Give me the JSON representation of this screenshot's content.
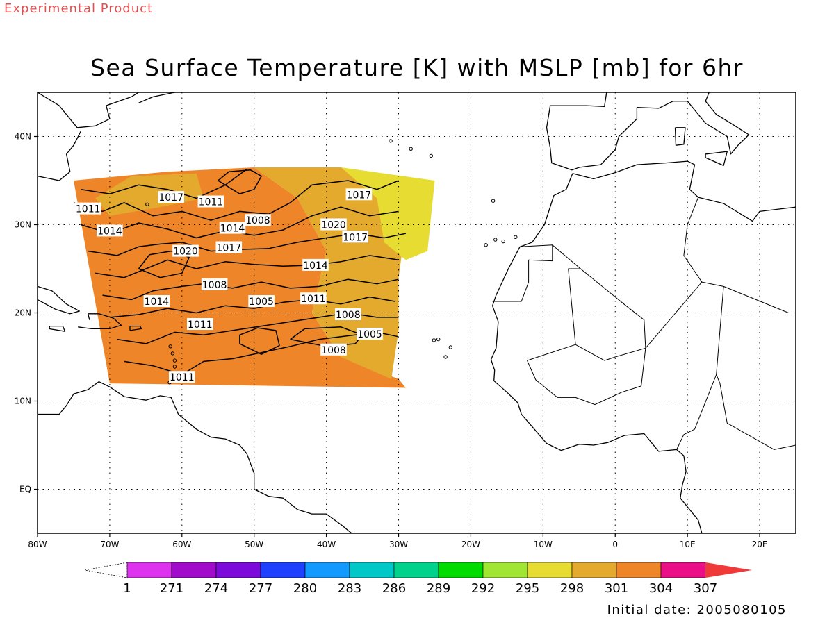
{
  "header": {
    "product_label": "Experimental Product",
    "title": "Sea Surface Temperature [K] with MSLP [mb] for 6hr"
  },
  "footer": {
    "initial_date": "Initial date: 2005080105"
  },
  "map": {
    "projection": "lat-lon",
    "lon_range": [
      -80,
      25
    ],
    "lat_range": [
      -5,
      45
    ],
    "grid_lines": "dotted",
    "lon_ticks": [
      {
        "value": -80,
        "label": "80W"
      },
      {
        "value": -70,
        "label": "70W"
      },
      {
        "value": -60,
        "label": "60W"
      },
      {
        "value": -50,
        "label": "50W"
      },
      {
        "value": -40,
        "label": "40W"
      },
      {
        "value": -30,
        "label": "30W"
      },
      {
        "value": -20,
        "label": "20W"
      },
      {
        "value": -10,
        "label": "10W"
      },
      {
        "value": 0,
        "label": "0"
      },
      {
        "value": 10,
        "label": "10E"
      },
      {
        "value": 20,
        "label": "20E"
      }
    ],
    "lat_ticks": [
      {
        "value": 40,
        "label": "40N"
      },
      {
        "value": 30,
        "label": "30N"
      },
      {
        "value": 20,
        "label": "20N"
      },
      {
        "value": 10,
        "label": "10N"
      },
      {
        "value": 0,
        "label": "EQ"
      }
    ],
    "sst_domain_lon_lat": [
      [
        -75,
        35
      ],
      [
        -25,
        35
      ],
      [
        -29,
        11.5
      ],
      [
        -70,
        12
      ]
    ],
    "sst_field_lon_lat": [
      {
        "value": 304,
        "color": "#ee8529",
        "polygon": [
          [
            -75,
            35
          ],
          [
            -62,
            36
          ],
          [
            -50,
            36.5
          ],
          [
            -44,
            33
          ],
          [
            -40,
            27
          ],
          [
            -42,
            20
          ],
          [
            -38,
            15
          ],
          [
            -30,
            12.5
          ],
          [
            -29,
            11.5
          ],
          [
            -70,
            12
          ]
        ]
      },
      {
        "value": 301,
        "color": "#e4aa2d",
        "polygon": [
          [
            -50,
            36.5
          ],
          [
            -38,
            36.5
          ],
          [
            -33,
            35.5
          ],
          [
            -29,
            30
          ],
          [
            -30,
            24
          ],
          [
            -30,
            18
          ],
          [
            -31,
            12.5
          ],
          [
            -38,
            15
          ],
          [
            -42,
            20
          ],
          [
            -40,
            27
          ],
          [
            -44,
            33
          ]
        ]
      },
      {
        "value": 301,
        "color": "#e4aa2d",
        "polygon": [
          [
            -72,
            33
          ],
          [
            -67,
            35.5
          ],
          [
            -58,
            35.8
          ],
          [
            -57,
            33
          ],
          [
            -63,
            32
          ],
          [
            -70,
            31
          ]
        ]
      },
      {
        "value": 298,
        "color": "#e6dc32",
        "polygon": [
          [
            -38,
            36.5
          ],
          [
            -25,
            35
          ],
          [
            -26,
            27
          ],
          [
            -29,
            26
          ],
          [
            -32,
            28
          ],
          [
            -33,
            33
          ]
        ]
      }
    ],
    "contour_labels_mb": [
      {
        "value": "1017",
        "lon": -61.5,
        "lat": 33.1
      },
      {
        "value": "1011",
        "lon": -56,
        "lat": 32.6
      },
      {
        "value": "1011",
        "lon": -73,
        "lat": 31.8
      },
      {
        "value": "1017",
        "lon": -35.5,
        "lat": 33.4
      },
      {
        "value": "1008",
        "lon": -49.5,
        "lat": 30.5
      },
      {
        "value": "1020",
        "lon": -39,
        "lat": 30
      },
      {
        "value": "1014",
        "lon": -70,
        "lat": 29.3
      },
      {
        "value": "1014",
        "lon": -53,
        "lat": 29.6
      },
      {
        "value": "1017",
        "lon": -36,
        "lat": 28.6
      },
      {
        "value": "1017",
        "lon": -53.5,
        "lat": 27.4
      },
      {
        "value": "1020",
        "lon": -59.5,
        "lat": 27
      },
      {
        "value": "1014",
        "lon": -41.5,
        "lat": 25.4
      },
      {
        "value": "1008",
        "lon": -55.5,
        "lat": 23.2
      },
      {
        "value": "1005",
        "lon": -49,
        "lat": 21.3
      },
      {
        "value": "1011",
        "lon": -41.8,
        "lat": 21.6
      },
      {
        "value": "1014",
        "lon": -63.5,
        "lat": 21.3
      },
      {
        "value": "1008",
        "lon": -37,
        "lat": 19.8
      },
      {
        "value": "1011",
        "lon": -57.5,
        "lat": 18.7
      },
      {
        "value": "1005",
        "lon": -34,
        "lat": 17.6
      },
      {
        "value": "1008",
        "lon": -39,
        "lat": 15.8
      },
      {
        "value": "1011",
        "lon": -60,
        "lat": 12.7
      }
    ],
    "colorbar": {
      "first_label": "1",
      "labels": [
        "271",
        "274",
        "277",
        "280",
        "283",
        "286",
        "289",
        "292",
        "295",
        "298",
        "301",
        "304",
        "307"
      ],
      "colors": [
        "#dd33ee",
        "#a10cca",
        "#7c0ada",
        "#2040ff",
        "#129aff",
        "#00c8c8",
        "#00d28c",
        "#00dc00",
        "#a0e632",
        "#e6dc32",
        "#e4aa2d",
        "#ee8529",
        "#ea0e87"
      ],
      "under_color": "#ffffff",
      "over_color": "#f03a3a"
    },
    "colors": {
      "contour": "#000000",
      "coastline": "#000000",
      "grid": "#000000"
    }
  }
}
